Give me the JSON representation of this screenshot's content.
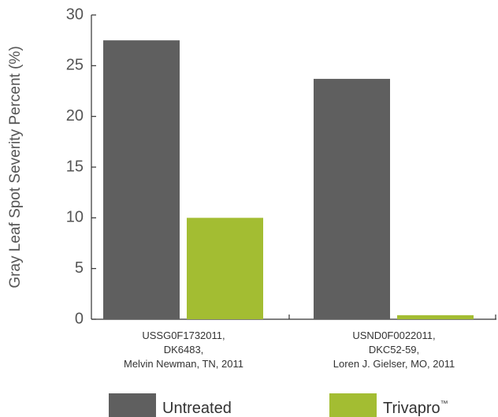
{
  "chart_data": {
    "type": "bar",
    "ylabel": "Gray Leaf Spot Severity Percent (%)",
    "xlabel": "",
    "ylim": [
      0,
      30
    ],
    "yticks": [
      0,
      5,
      10,
      15,
      20,
      25,
      30
    ],
    "grid": false,
    "legend_position": "bottom",
    "categories": [
      {
        "lines": [
          "USSG0F1732011,",
          "DK6483,",
          "Melvin Newman, TN, 2011"
        ]
      },
      {
        "lines": [
          "USND0F0022011,",
          "DKC52-59,",
          "Loren J. Gielser, MO, 2011"
        ]
      }
    ],
    "series": [
      {
        "name": "Untreated",
        "name_suffix": "",
        "color": "#5f5f5f",
        "values": [
          27.5,
          23.7
        ]
      },
      {
        "name": "Trivapro",
        "name_suffix": "™",
        "color": "#a3bd32",
        "values": [
          10.0,
          0.4
        ]
      }
    ]
  }
}
